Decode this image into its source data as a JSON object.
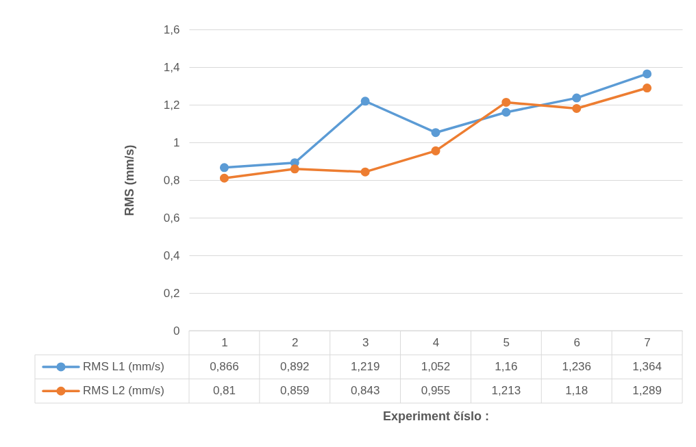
{
  "chart_data": {
    "type": "line",
    "xlabel": "Experiment číslo :",
    "ylabel": "RMS (mm/s)",
    "categories": [
      "1",
      "2",
      "3",
      "4",
      "5",
      "6",
      "7"
    ],
    "ylim": [
      0,
      1.6
    ],
    "yticks": [
      0,
      {
        "value": 0.2,
        "label": "0,2"
      },
      {
        "value": 0.4,
        "label": "0,4"
      },
      {
        "value": 0.6,
        "label": "0,6"
      },
      {
        "value": 0.8,
        "label": "0,8"
      },
      1,
      {
        "value": 1.2,
        "label": "1,2"
      },
      {
        "value": 1.4,
        "label": "1,4"
      },
      {
        "value": 1.6,
        "label": "1,6"
      }
    ],
    "grid": "y",
    "legend": "bottom",
    "marker": "circle",
    "line_style": "solid",
    "series": [
      {
        "name": "RMS L1 (mm/s)",
        "color": "#5b9bd5",
        "values": [
          0.866,
          0.892,
          1.219,
          1.052,
          1.16,
          1.236,
          1.364
        ],
        "value_labels": [
          "0,866",
          "0,892",
          "1,219",
          "1,052",
          "1,16",
          "1,236",
          "1,364"
        ]
      },
      {
        "name": "RMS L2 (mm/s)",
        "color": "#ed7d31",
        "values": [
          0.81,
          0.859,
          0.843,
          0.955,
          1.213,
          1.18,
          1.289
        ],
        "value_labels": [
          "0,81",
          "0,859",
          "0,843",
          "0,955",
          "1,213",
          "1,18",
          "1,289"
        ]
      }
    ]
  }
}
